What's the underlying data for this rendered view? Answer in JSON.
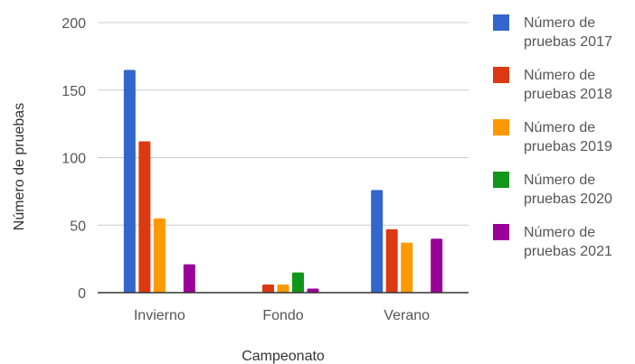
{
  "chart_data": {
    "type": "bar",
    "title": "",
    "xlabel": "Campeonato",
    "ylabel": "Número de pruebas",
    "ylim": [
      0,
      200
    ],
    "yticks": [
      0,
      50,
      100,
      150,
      200
    ],
    "grid": true,
    "legend_position": "right",
    "categories": [
      "Invierno",
      "Fondo",
      "Verano"
    ],
    "series": [
      {
        "name": [
          "Número de",
          "pruebas 2017"
        ],
        "color": "#3366cc",
        "values": [
          165,
          0,
          76
        ]
      },
      {
        "name": [
          "Número de",
          "pruebas 2018"
        ],
        "color": "#dc3912",
        "values": [
          112,
          6,
          47
        ]
      },
      {
        "name": [
          "Número de",
          "pruebas 2019"
        ],
        "color": "#ff9900",
        "values": [
          55,
          6,
          37
        ]
      },
      {
        "name": [
          "Número de",
          "pruebas 2020"
        ],
        "color": "#109618",
        "values": [
          0,
          15,
          0
        ]
      },
      {
        "name": [
          "Número de",
          "pruebas 2021"
        ],
        "color": "#990099",
        "values": [
          21,
          3,
          40
        ]
      }
    ]
  }
}
